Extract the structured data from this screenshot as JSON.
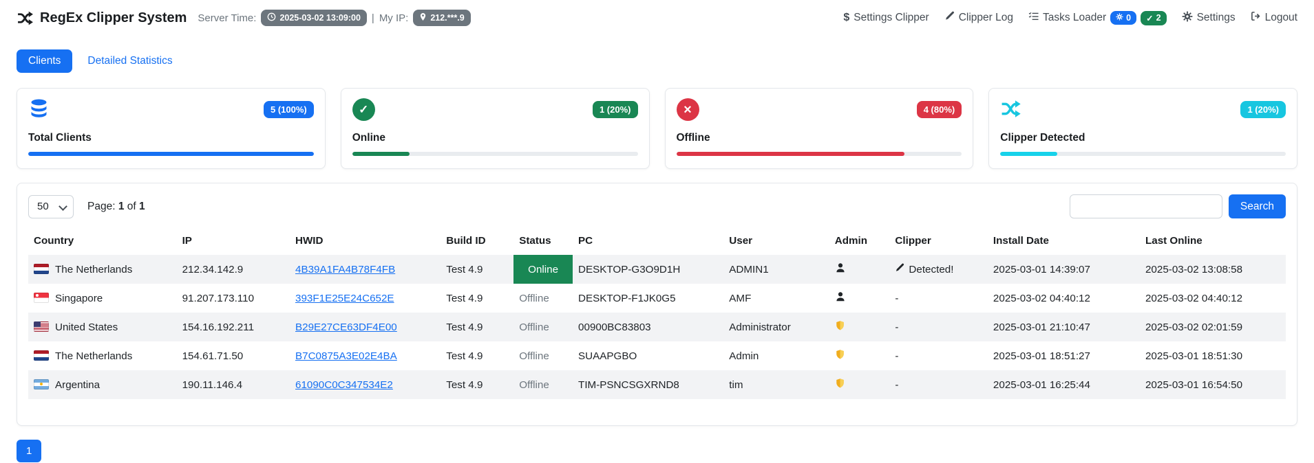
{
  "colors": {
    "primary": "#1670f2",
    "success": "#198754",
    "danger": "#dc3545",
    "info": "#17d2ea",
    "secondary": "#6c757d"
  },
  "icons": {
    "dollar": "$",
    "check": "✓",
    "cross": "×"
  },
  "header": {
    "app_title": "RegEx Clipper System",
    "server_time_label": "Server Time:",
    "server_time_value": "2025-03-02 13:09:00",
    "separator": "|",
    "my_ip_label": "My IP:",
    "my_ip_value": "212.***.9",
    "nav": {
      "settings_clipper": "Settings Clipper",
      "clipper_log": "Clipper Log",
      "tasks_loader": "Tasks Loader",
      "tasks_badge_pending": "0",
      "tasks_badge_done": "2",
      "settings": "Settings",
      "logout": "Logout"
    }
  },
  "tabs": {
    "clients": "Clients",
    "detailed_statistics": "Detailed Statistics"
  },
  "cards": [
    {
      "title": "Total Clients",
      "badge": "5 (100%)",
      "percent": 100,
      "color": "#1670f2",
      "icon": "database-icon"
    },
    {
      "title": "Online",
      "badge": "1 (20%)",
      "percent": 20,
      "color": "#198754",
      "icon": "check-circle-icon"
    },
    {
      "title": "Offline",
      "badge": "4 (80%)",
      "percent": 80,
      "color": "#dc3545",
      "icon": "x-circle-icon"
    },
    {
      "title": "Clipper Detected",
      "badge": "1 (20%)",
      "percent": 20,
      "color": "#17d2ea",
      "icon": "shuffle-icon"
    }
  ],
  "panel": {
    "page_size": "50",
    "page_label": "Page:",
    "page_current": "1",
    "of_label": "of",
    "page_total": "1",
    "search_value": "",
    "search_button": "Search"
  },
  "table": {
    "columns": [
      "Country",
      "IP",
      "HWID",
      "Build ID",
      "Status",
      "PC",
      "User",
      "Admin",
      "Clipper",
      "Install Date",
      "Last Online"
    ],
    "rows": [
      {
        "flag": "nl",
        "country": "The Netherlands",
        "ip": "212.34.142.9",
        "hwid": "4B39A1FA4B78F4FB",
        "build": "Test 4.9",
        "status": "Online",
        "status_type": "online",
        "pc": "DESKTOP-G3O9D1H",
        "user": "ADMIN1",
        "admin": "user",
        "clipper": "Detected!",
        "clipper_detected": true,
        "install_date": "2025-03-01 14:39:07",
        "last_online": "2025-03-02 13:08:58"
      },
      {
        "flag": "sg",
        "country": "Singapore",
        "ip": "91.207.173.110",
        "hwid": "393F1E25E24C652E",
        "build": "Test 4.9",
        "status": "Offline",
        "status_type": "offline",
        "pc": "DESKTOP-F1JK0G5",
        "user": "AMF",
        "admin": "user",
        "clipper": "-",
        "clipper_detected": false,
        "install_date": "2025-03-02 04:40:12",
        "last_online": "2025-03-02 04:40:12"
      },
      {
        "flag": "us",
        "country": "United States",
        "ip": "154.16.192.211",
        "hwid": "B29E27CE63DF4E00",
        "build": "Test 4.9",
        "status": "Offline",
        "status_type": "offline",
        "pc": "00900BC83803",
        "user": "Administrator",
        "admin": "shield",
        "clipper": "-",
        "clipper_detected": false,
        "install_date": "2025-03-01 21:10:47",
        "last_online": "2025-03-02 02:01:59"
      },
      {
        "flag": "nl",
        "country": "The Netherlands",
        "ip": "154.61.71.50",
        "hwid": "B7C0875A3E02E4BA",
        "build": "Test 4.9",
        "status": "Offline",
        "status_type": "offline",
        "pc": "SUAAPGBO",
        "user": "Admin",
        "admin": "shield",
        "clipper": "-",
        "clipper_detected": false,
        "install_date": "2025-03-01 18:51:27",
        "last_online": "2025-03-01 18:51:30"
      },
      {
        "flag": "ar",
        "country": "Argentina",
        "ip": "190.11.146.4",
        "hwid": "61090C0C347534E2",
        "build": "Test 4.9",
        "status": "Offline",
        "status_type": "offline",
        "pc": "TIM-PSNCSGXRND8",
        "user": "tim",
        "admin": "shield",
        "clipper": "-",
        "clipper_detected": false,
        "install_date": "2025-03-01 16:25:44",
        "last_online": "2025-03-01 16:54:50"
      }
    ]
  },
  "pagination": {
    "pages": [
      "1"
    ]
  }
}
